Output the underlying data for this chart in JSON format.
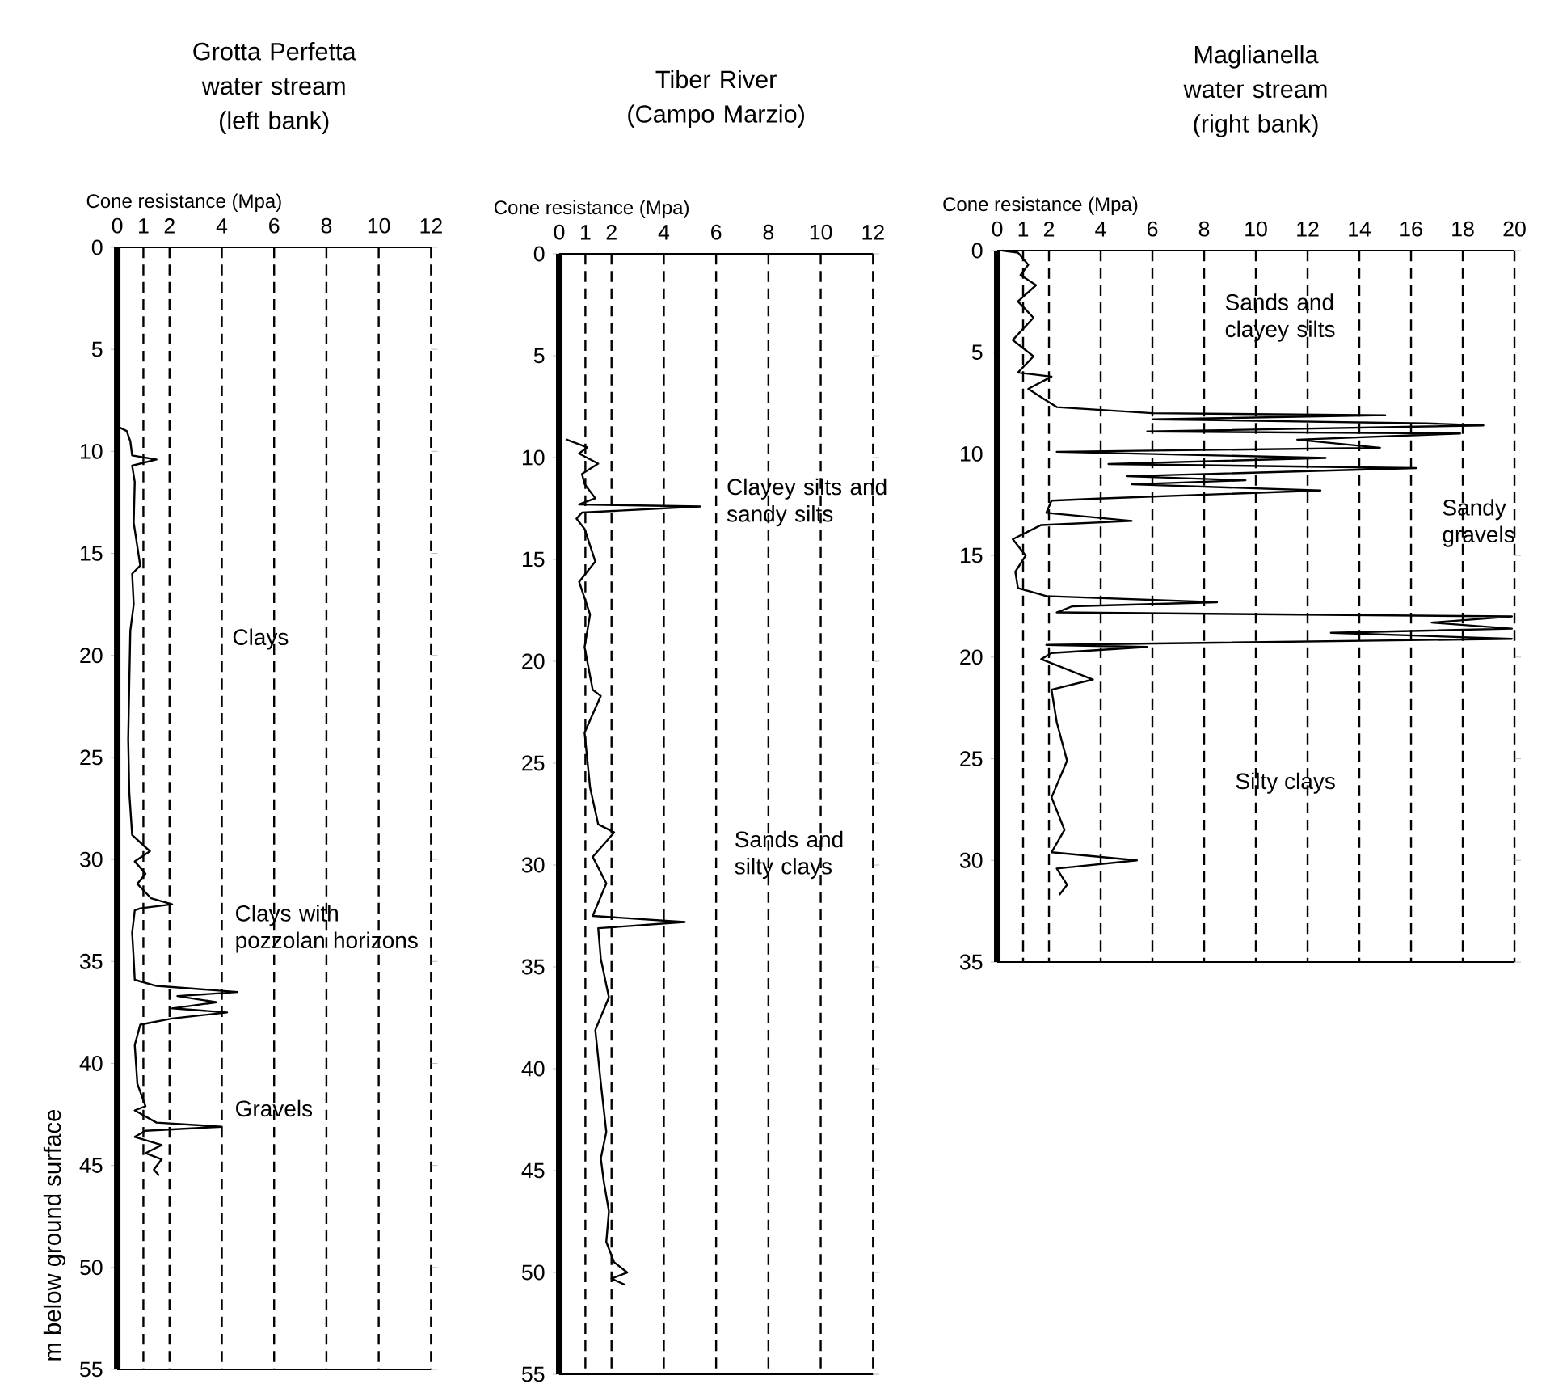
{
  "chart_data": [
    {
      "type": "line",
      "title": "Grotta Perfetta water stream (left bank)",
      "xlabel": "Cone resistance (Mpa)",
      "ylabel": "m below ground surface",
      "series": [
        {
          "color": "#000000",
          "x": [
            0.05,
            0.36,
            0.5,
            0.57,
            1.5,
            0.57,
            0.67,
            0.63,
            0.88,
            0.57,
            0.63,
            0.5,
            0.46,
            0.42,
            0.46,
            0.57,
            1.25,
            0.67,
            1.08,
            0.77,
            1.29,
            2.1,
            0.88,
            0.67,
            0.57,
            0.63,
            0.67,
            1.5,
            4.6,
            2.3,
            3.8,
            2.1,
            4.2,
            2.1,
            0.88,
            0.67,
            0.77,
            1.08,
            0.67,
            1.5,
            4.0,
            1.08,
            0.67,
            1.7,
            1.08,
            1.7,
            1.4,
            1.6
          ],
          "values": [
            8.8,
            9.0,
            9.5,
            10.2,
            10.4,
            10.7,
            11.5,
            13.5,
            15.6,
            16.0,
            17.5,
            18.8,
            21.4,
            24.1,
            26.7,
            28.8,
            29.6,
            30.1,
            30.7,
            31.2,
            31.9,
            32.2,
            32.4,
            32.5,
            33.6,
            34.9,
            35.9,
            36.2,
            36.5,
            36.7,
            37.0,
            37.3,
            37.5,
            37.8,
            38.1,
            39.1,
            41.0,
            42.1,
            42.3,
            42.9,
            43.1,
            43.3,
            43.6,
            44.0,
            44.4,
            44.7,
            45.2,
            45.5
          ]
        }
      ],
      "xlim": [
        0,
        12
      ],
      "ylim": [
        55,
        0
      ],
      "xticks": [
        0,
        1,
        2,
        4,
        6,
        8,
        10,
        12
      ],
      "yticks": [
        0,
        5,
        10,
        15,
        20,
        25,
        30,
        35,
        40,
        45,
        50,
        55
      ],
      "grid": "x",
      "marker": "none",
      "annotations": [
        "Clays",
        "Clays with pozzolan horizons",
        "Gravels"
      ]
    },
    {
      "type": "line",
      "title": "Tiber River (Campo Marzio)",
      "xlabel": "Cone resistance (Mpa)",
      "series": [
        {
          "color": "#000000",
          "x": [
            0.25,
            1.07,
            0.76,
            1.49,
            0.87,
            0.97,
            1.38,
            0.76,
            5.4,
            0.87,
            0.66,
            0.97,
            1.38,
            0.76,
            1.18,
            0.97,
            1.28,
            1.59,
            0.97,
            1.18,
            1.49,
            2.1,
            1.28,
            1.8,
            1.28,
            4.8,
            1.49,
            1.59,
            1.9,
            1.38,
            1.59,
            1.8,
            1.59,
            1.7,
            1.9,
            1.8,
            2.1,
            2.6,
            2.0,
            2.5
          ],
          "values": [
            9.1,
            9.5,
            9.8,
            10.3,
            10.8,
            11.3,
            12.0,
            12.3,
            12.4,
            12.7,
            13.0,
            13.5,
            15.1,
            16.1,
            17.7,
            19.3,
            21.4,
            21.7,
            23.5,
            26.2,
            28.0,
            28.4,
            29.6,
            30.9,
            32.5,
            32.8,
            33.1,
            34.6,
            36.5,
            38.1,
            40.7,
            43.1,
            44.4,
            45.5,
            47.0,
            48.5,
            49.5,
            50.0,
            50.3,
            50.6
          ]
        }
      ],
      "xlim": [
        0,
        12
      ],
      "ylim": [
        55,
        0
      ],
      "xticks": [
        0,
        1,
        2,
        4,
        6,
        8,
        10,
        12
      ],
      "yticks": [
        0,
        5,
        10,
        15,
        20,
        25,
        30,
        35,
        40,
        45,
        50,
        55
      ],
      "grid": "x",
      "marker": "none",
      "annotations": [
        "Clayey silts and sandy silts",
        "Sands and silty clays"
      ]
    },
    {
      "type": "line",
      "title": "Maglianella water stream (right bank)",
      "xlabel": "Cone resistance (Mpa)",
      "series": [
        {
          "color": "#000000",
          "x": [
            0.2,
            0.8,
            1.2,
            0.9,
            1.5,
            0.8,
            1.4,
            0.6,
            1.4,
            0.8,
            2.1,
            1.2,
            1.8,
            2.3,
            6.0,
            15.0,
            6.0,
            16.6,
            18.8,
            5.8,
            17.9,
            11.6,
            14.8,
            2.3,
            12.7,
            4.3,
            16.2,
            5.0,
            9.6,
            5.2,
            12.5,
            3.9,
            2.1,
            1.9,
            5.2,
            1.7,
            0.6,
            1.1,
            0.7,
            0.8,
            1.9,
            8.5,
            2.9,
            2.3,
            19.9,
            16.8,
            19.9,
            12.9,
            19.9,
            1.9,
            5.8,
            2.1,
            1.7,
            3.7,
            2.1,
            2.3,
            2.7,
            2.1,
            2.6,
            2.1,
            5.4,
            2.3,
            2.7,
            2.4
          ],
          "values": [
            0,
            0.1,
            0.7,
            1.2,
            1.7,
            2.5,
            3.3,
            4.4,
            5.2,
            6.0,
            6.2,
            6.8,
            7.3,
            7.7,
            8.0,
            8.1,
            8.3,
            8.5,
            8.6,
            8.9,
            9.0,
            9.3,
            9.7,
            9.9,
            10.2,
            10.5,
            10.7,
            11.1,
            11.3,
            11.5,
            11.8,
            12.2,
            12.3,
            12.9,
            13.3,
            13.5,
            14.2,
            15.0,
            15.8,
            16.6,
            17.0,
            17.3,
            17.5,
            17.8,
            18.0,
            18.3,
            18.6,
            18.8,
            19.1,
            19.4,
            19.5,
            19.8,
            20.1,
            21.1,
            21.6,
            23.2,
            25.1,
            26.9,
            28.5,
            29.6,
            30.0,
            30.4,
            31.2,
            31.7
          ]
        }
      ],
      "xlim": [
        0,
        20
      ],
      "ylim": [
        35,
        0
      ],
      "xticks": [
        0,
        1,
        2,
        4,
        6,
        8,
        10,
        12,
        14,
        16,
        18,
        20
      ],
      "yticks": [
        0,
        5,
        10,
        15,
        20,
        25,
        30,
        35
      ],
      "grid": "x",
      "marker": "none",
      "annotations": [
        "Sands and clayey silts",
        "Sandy gravels",
        "Silty clays"
      ]
    }
  ]
}
